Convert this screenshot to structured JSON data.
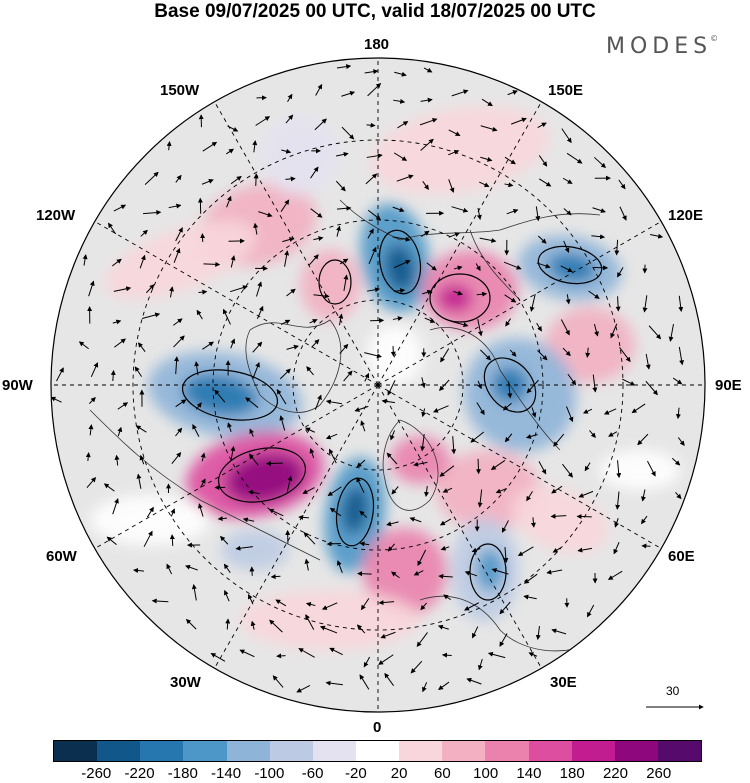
{
  "title": "Base 09/07/2025 00 UTC, valid 18/07/2025 00 UTC",
  "logo": "MODES",
  "logo_mark": "©",
  "map": {
    "projection": "north-polar-stereographic",
    "longitude_labels": {
      "top": "180",
      "top_right": "150E",
      "upper_right": "120E",
      "right": "90E",
      "lower_right": "60E",
      "bottom_right": "30E",
      "bottom": "0",
      "bottom_left": "30W",
      "lower_left": "60W",
      "left": "90W",
      "upper_left": "120W",
      "top_left": "150W"
    },
    "anomaly_centers": [
      {
        "sign": "negative",
        "near": "Pacific 150W-180"
      },
      {
        "sign": "negative",
        "near": "East Siberia 130E"
      },
      {
        "sign": "positive",
        "near": "Siberia 150E"
      },
      {
        "sign": "negative",
        "near": "Central Siberia 80E"
      },
      {
        "sign": "positive",
        "near": "Siberia 110E"
      },
      {
        "sign": "negative",
        "near": "Canada 90W"
      },
      {
        "sign": "positive",
        "near": "Canada 110W"
      },
      {
        "sign": "positive",
        "near": "Northwest Atlantic 70W"
      },
      {
        "sign": "negative",
        "near": "Greenland 30W"
      },
      {
        "sign": "positive",
        "near": "Europe 10E"
      },
      {
        "sign": "negative",
        "near": "Western Russia 30E"
      },
      {
        "sign": "positive",
        "near": "Central Russia 50E"
      }
    ]
  },
  "vector_reference": {
    "label": "30"
  },
  "colorbar": {
    "colors": [
      "#0b2f4f",
      "#12578a",
      "#2677b0",
      "#4d97c8",
      "#8eb4d8",
      "#bccbe3",
      "#e4e2f0",
      "#ffffff",
      "#f8d6dc",
      "#f2b0c2",
      "#ea82ad",
      "#dd4da0",
      "#c21c91",
      "#8e077c",
      "#560a6c"
    ],
    "ticks": [
      "-260",
      "-220",
      "-180",
      "-140",
      "-100",
      "-60",
      "-20",
      "20",
      "60",
      "100",
      "140",
      "180",
      "220",
      "260"
    ]
  }
}
